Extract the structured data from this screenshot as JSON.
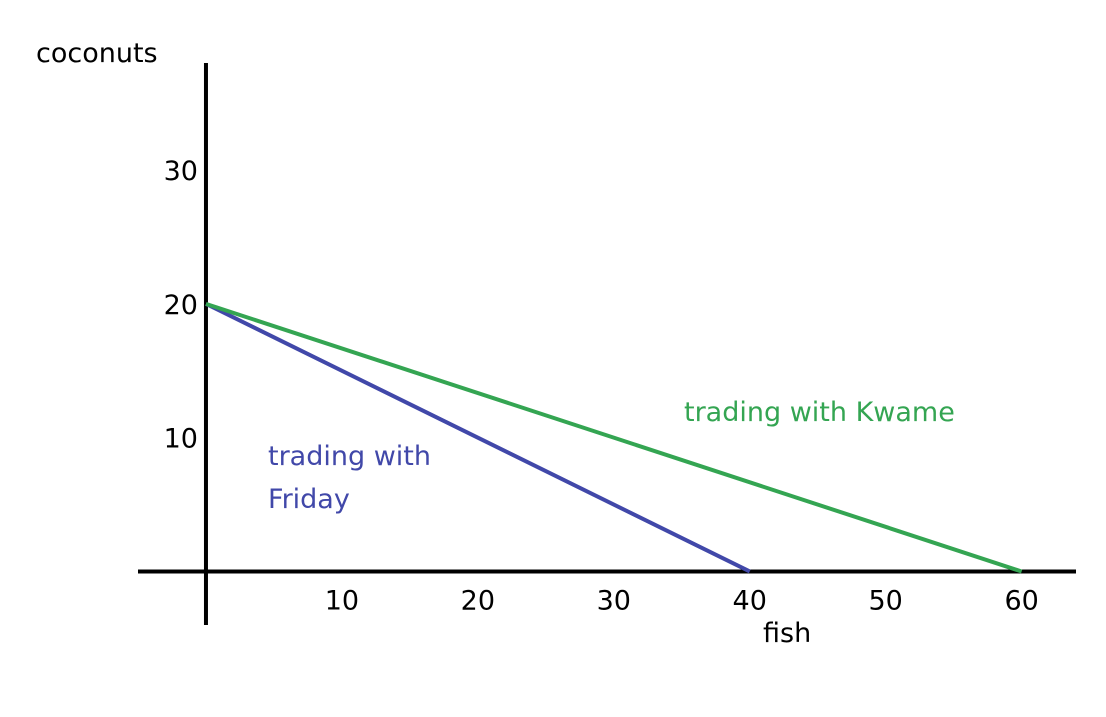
{
  "chart_data": {
    "type": "line",
    "xlabel": "fish",
    "ylabel": "coconuts",
    "xlim": [
      -5,
      64
    ],
    "ylim": [
      -4,
      38
    ],
    "xticks": [
      10,
      20,
      30,
      40,
      50,
      60
    ],
    "yticks": [
      10,
      20,
      30
    ],
    "grid": false,
    "series": [
      {
        "label": [
          "trading with",
          "Friday"
        ],
        "color": "#4148a9",
        "x": [
          0,
          40
        ],
        "values": [
          20,
          0
        ]
      },
      {
        "label": [
          "trading with Kwame"
        ],
        "color": "#34a552",
        "x": [
          0,
          60
        ],
        "values": [
          20,
          0
        ]
      }
    ]
  }
}
